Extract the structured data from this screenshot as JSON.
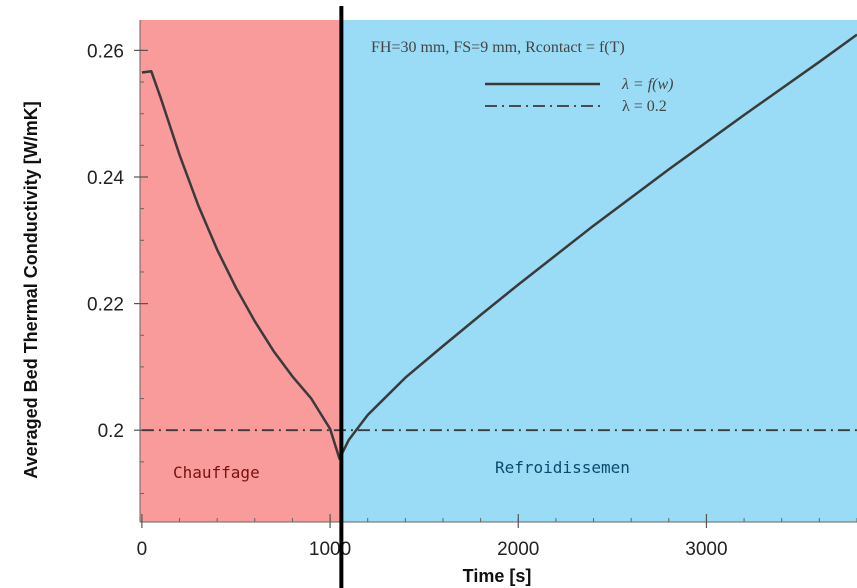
{
  "chart_data": {
    "type": "line",
    "xlabel": "Time [s]",
    "ylabel": "Averaged Bed Thermal Conductivity [W/mK]",
    "xlim": [
      -10,
      3800
    ],
    "ylim": [
      0.1855,
      0.2648
    ],
    "x_ticks": [
      0,
      1000,
      2000,
      3000
    ],
    "x_tick_labels": [
      "0",
      "1000",
      "2000",
      "3000"
    ],
    "y_ticks": [
      0.2,
      0.22,
      0.24,
      0.26
    ],
    "y_tick_labels": [
      "0.2",
      "0.22",
      "0.24",
      "0.26"
    ],
    "legend_title": "FH=30 mm, FS=9 mm, Rcontact = f(T)",
    "legend_position": "top-right",
    "series": [
      {
        "name": "λ = f(w)",
        "style": "solid",
        "color": "#3a3a3a",
        "x": [
          0,
          50,
          100,
          200,
          300,
          400,
          500,
          600,
          700,
          800,
          900,
          1000,
          1050,
          1100,
          1200,
          1400,
          1600,
          1800,
          2000,
          2400,
          2800,
          3200,
          3600,
          3800
        ],
        "y": [
          0.2565,
          0.2567,
          0.2525,
          0.2435,
          0.2355,
          0.2285,
          0.2225,
          0.2172,
          0.2125,
          0.2085,
          0.205,
          0.2002,
          0.1955,
          0.1985,
          0.2024,
          0.2083,
          0.2133,
          0.2182,
          0.223,
          0.2323,
          0.2412,
          0.2498,
          0.2582,
          0.2625
        ]
      },
      {
        "name": "λ = 0.2",
        "style": "dashdot",
        "color": "#3a3a3a",
        "x": [
          0,
          3800
        ],
        "y": [
          0.2,
          0.2
        ]
      }
    ],
    "regions": [
      {
        "label": "Chauffage",
        "x_from": -10,
        "x_to": 1060,
        "color": "#f99a9b",
        "label_color": "#7a1010"
      },
      {
        "label": "Refroidissemen",
        "x_from": 1060,
        "x_to": 3800,
        "color": "#9adcf5",
        "label_color": "#0b4a6e"
      }
    ],
    "divider_x": 1060,
    "grid": false
  }
}
